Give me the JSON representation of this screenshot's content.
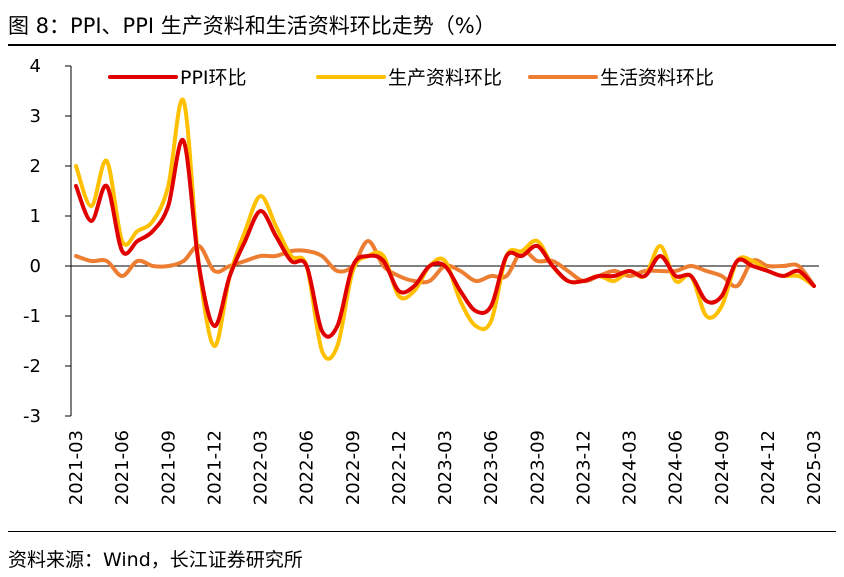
{
  "header": {
    "title": "图 8：PPI、PPI 生产资料和生活资料环比走势（%）"
  },
  "footer": {
    "source": "资料来源：Wind，长江证券研究所"
  },
  "chart_data": {
    "type": "line",
    "title": "图 8：PPI、PPI 生产资料和生活资料环比走势（%）",
    "xlabel": "",
    "ylabel": "",
    "ylim": [
      -3,
      4
    ],
    "yticks": [
      4,
      3,
      2,
      1,
      0,
      -1,
      -2,
      -3
    ],
    "grid": false,
    "legend_position": "top",
    "x": [
      "2021-03",
      "2021-04",
      "2021-05",
      "2021-06",
      "2021-07",
      "2021-08",
      "2021-09",
      "2021-10",
      "2021-11",
      "2021-12",
      "2022-01",
      "2022-02",
      "2022-03",
      "2022-04",
      "2022-05",
      "2022-06",
      "2022-07",
      "2022-08",
      "2022-09",
      "2022-10",
      "2022-11",
      "2022-12",
      "2023-01",
      "2023-02",
      "2023-03",
      "2023-04",
      "2023-05",
      "2023-06",
      "2023-07",
      "2023-08",
      "2023-09",
      "2023-10",
      "2023-11",
      "2023-12",
      "2024-01",
      "2024-02",
      "2024-03",
      "2024-04",
      "2024-05",
      "2024-06",
      "2024-07",
      "2024-08",
      "2024-09",
      "2024-10",
      "2024-11",
      "2024-12",
      "2025-01",
      "2025-02",
      "2025-03"
    ],
    "x_tick_labels": [
      "2021-03",
      "2021-06",
      "2021-09",
      "2021-12",
      "2022-03",
      "2022-06",
      "2022-09",
      "2022-12",
      "2023-03",
      "2023-06",
      "2023-09",
      "2023-12",
      "2024-03",
      "2024-06",
      "2024-09",
      "2024-12",
      "2025-03"
    ],
    "series": [
      {
        "name": "PPI环比",
        "color": "#E00000",
        "values": [
          1.6,
          0.9,
          1.6,
          0.3,
          0.5,
          0.7,
          1.2,
          2.5,
          0.0,
          -1.2,
          -0.2,
          0.5,
          1.1,
          0.6,
          0.1,
          0.0,
          -1.3,
          -1.2,
          0.0,
          0.2,
          0.1,
          -0.5,
          -0.4,
          0.0,
          0.0,
          -0.5,
          -0.9,
          -0.8,
          0.2,
          0.2,
          0.4,
          0.0,
          -0.3,
          -0.3,
          -0.2,
          -0.2,
          -0.1,
          -0.2,
          0.2,
          -0.2,
          -0.2,
          -0.7,
          -0.6,
          0.1,
          0.0,
          -0.1,
          -0.2,
          -0.1,
          -0.4
        ]
      },
      {
        "name": "生产资料环比",
        "color": "#FFC000",
        "values": [
          2.0,
          1.2,
          2.1,
          0.5,
          0.7,
          0.9,
          1.6,
          3.3,
          0.0,
          -1.6,
          -0.2,
          0.7,
          1.4,
          0.8,
          0.2,
          0.0,
          -1.7,
          -1.6,
          -0.1,
          0.2,
          0.2,
          -0.6,
          -0.5,
          0.0,
          0.1,
          -0.7,
          -1.2,
          -1.1,
          0.2,
          0.3,
          0.5,
          0.0,
          -0.3,
          -0.3,
          -0.2,
          -0.3,
          -0.1,
          -0.2,
          0.4,
          -0.3,
          -0.2,
          -1.0,
          -0.8,
          0.1,
          0.1,
          -0.1,
          -0.2,
          -0.2,
          -0.4
        ]
      },
      {
        "name": "生活资料环比",
        "color": "#ED7D31",
        "values": [
          0.2,
          0.1,
          0.1,
          -0.2,
          0.1,
          0.0,
          0.0,
          0.1,
          0.4,
          -0.1,
          0.0,
          0.1,
          0.2,
          0.2,
          0.3,
          0.3,
          0.2,
          -0.1,
          0.0,
          0.5,
          0.0,
          -0.2,
          -0.3,
          -0.3,
          0.0,
          -0.1,
          -0.3,
          -0.2,
          -0.2,
          0.3,
          0.1,
          0.1,
          -0.1,
          -0.3,
          -0.2,
          -0.1,
          -0.2,
          -0.1,
          -0.1,
          -0.1,
          0.0,
          -0.1,
          -0.2,
          -0.4,
          0.1,
          0.0,
          0.0,
          0.0,
          -0.4
        ]
      }
    ]
  }
}
